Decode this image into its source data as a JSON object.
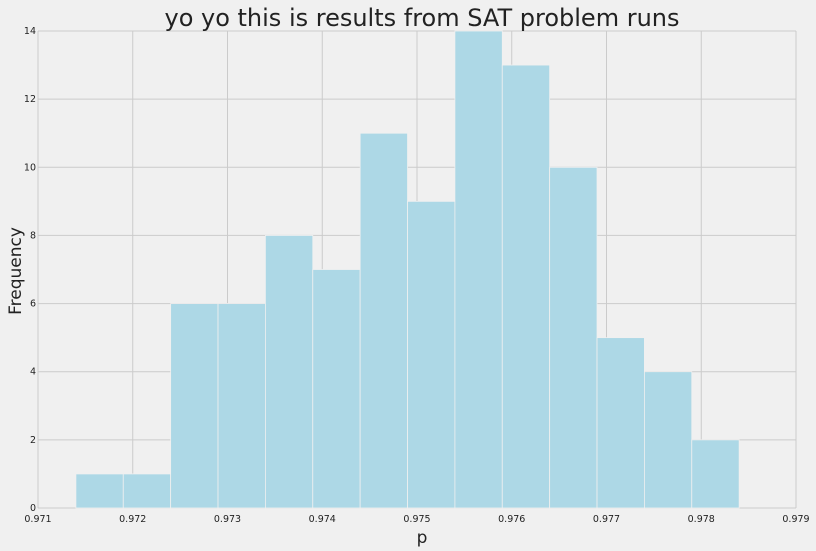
{
  "chart_data": {
    "type": "bar",
    "title": "yo yo this is results from SAT problem runs",
    "xlabel": "p",
    "ylabel": "Frequency",
    "xlim": [
      0.971,
      0.979
    ],
    "ylim": [
      0,
      14
    ],
    "xticks": [
      0.971,
      0.972,
      0.973,
      0.974,
      0.975,
      0.976,
      0.977,
      0.978,
      0.979
    ],
    "xtick_labels": [
      "0.971",
      "0.972",
      "0.973",
      "0.974",
      "0.975",
      "0.976",
      "0.977",
      "0.978",
      "0.979"
    ],
    "yticks": [
      0,
      2,
      4,
      6,
      8,
      10,
      12,
      14
    ],
    "ytick_labels": [
      "0",
      "2",
      "4",
      "6",
      "8",
      "10",
      "12",
      "14"
    ],
    "bin_edges": [
      0.9714,
      0.9719,
      0.9724,
      0.9729,
      0.9734,
      0.9739,
      0.9744,
      0.9749,
      0.9754,
      0.9759,
      0.9764,
      0.9769,
      0.9774,
      0.9779,
      0.9784
    ],
    "values": [
      1,
      1,
      6,
      6,
      8,
      7,
      11,
      9,
      14,
      13,
      10,
      5,
      4,
      2
    ],
    "grid": true,
    "colors": {
      "background": "#f0f0f0",
      "bar": "#add8e6",
      "grid": "#cbcbcb",
      "text": "#222222"
    }
  }
}
